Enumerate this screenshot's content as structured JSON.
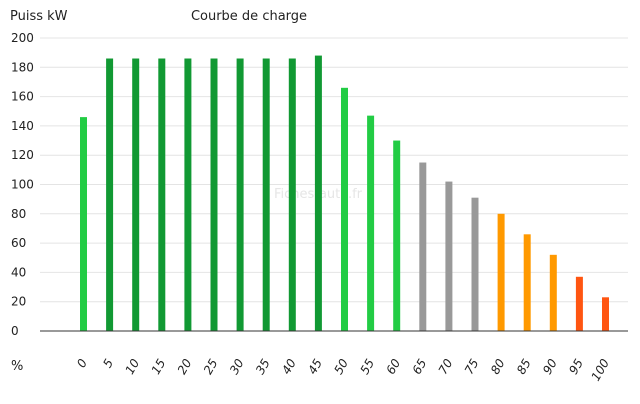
{
  "chart_data": {
    "type": "bar",
    "title": "Courbe de charge",
    "ylabel": "Puiss kW",
    "xlabel": "%",
    "watermark": "Fiches-auto.fr",
    "ylim": [
      0,
      200
    ],
    "yticks": [
      0,
      20,
      40,
      60,
      80,
      100,
      120,
      140,
      160,
      180,
      200
    ],
    "grid": "horizontal",
    "categories": [
      "0",
      "5",
      "10",
      "15",
      "20",
      "25",
      "30",
      "35",
      "40",
      "45",
      "50",
      "55",
      "60",
      "65",
      "70",
      "75",
      "80",
      "85",
      "90",
      "95",
      "100"
    ],
    "values": [
      146,
      186,
      186,
      186,
      186,
      186,
      186,
      186,
      186,
      188,
      166,
      147,
      130,
      115,
      102,
      91,
      80,
      66,
      52,
      37,
      23
    ],
    "colors": [
      "#22cc44",
      "#119933",
      "#119933",
      "#119933",
      "#119933",
      "#119933",
      "#119933",
      "#119933",
      "#119933",
      "#119933",
      "#22cc44",
      "#22cc44",
      "#22cc44",
      "#999999",
      "#999999",
      "#999999",
      "#ff9900",
      "#ff9900",
      "#ff9900",
      "#ff5511",
      "#ff5511"
    ]
  }
}
